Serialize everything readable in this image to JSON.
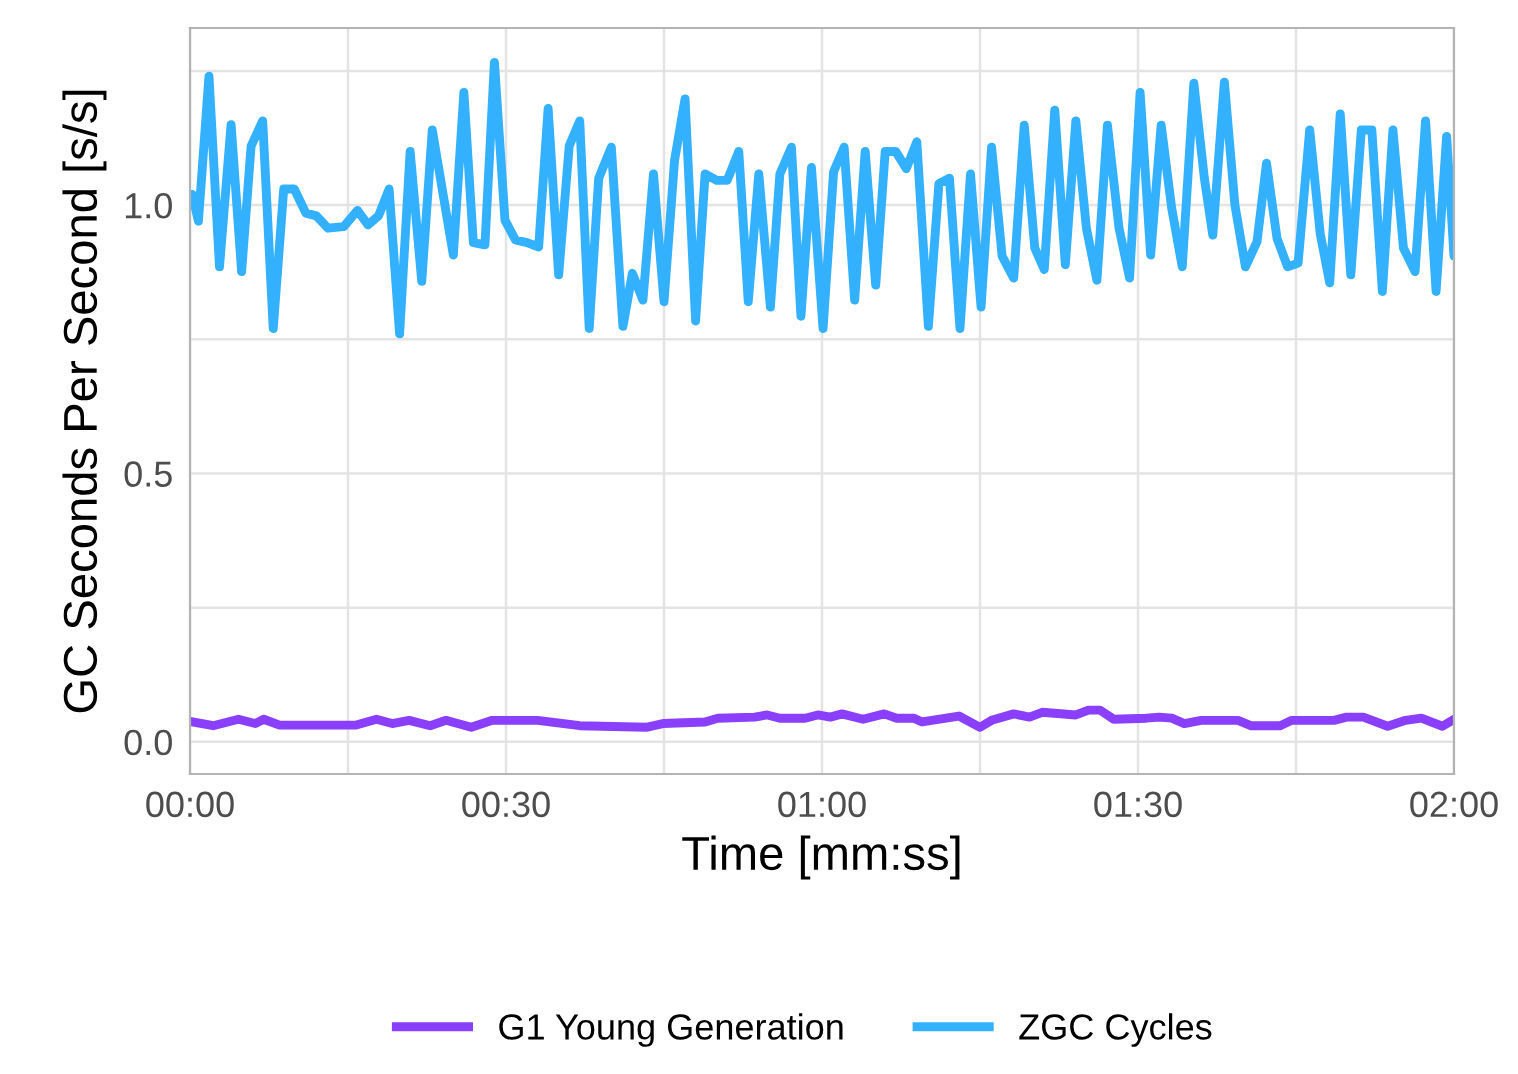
{
  "chart_data": {
    "type": "line",
    "xlabel": "Time [mm:ss]",
    "ylabel": "GC Seconds Per Second [s/s]",
    "xlim": [
      0,
      120
    ],
    "ylim": [
      -0.06,
      1.33
    ],
    "xticks": [
      {
        "value": 0,
        "label": "00:00"
      },
      {
        "value": 15,
        "label": null
      },
      {
        "value": 30,
        "label": "00:30"
      },
      {
        "value": 45,
        "label": null
      },
      {
        "value": 60,
        "label": "01:00"
      },
      {
        "value": 75,
        "label": null
      },
      {
        "value": 90,
        "label": "01:30"
      },
      {
        "value": 105,
        "label": null
      },
      {
        "value": 120,
        "label": "02:00"
      }
    ],
    "yticks": [
      {
        "value": 0,
        "label": "0.0"
      },
      {
        "value": 0.25,
        "label": null
      },
      {
        "value": 0.5,
        "label": "0.5"
      },
      {
        "value": 0.75,
        "label": null
      },
      {
        "value": 1.0,
        "label": "1.0"
      },
      {
        "value": 1.25,
        "label": null
      }
    ],
    "grid": true,
    "legend": "bottom",
    "line_style": "solid",
    "series": [
      {
        "name": "G1 Young Generation",
        "color": "#8a3ffc",
        "x": [
          0,
          2.2,
          4.6,
          6.2,
          7,
          8.5,
          15.7,
          17.7,
          19.2,
          20.8,
          22.8,
          24.3,
          26.7,
          28.7,
          33,
          37,
          43.3,
          44.9,
          48.9,
          50.1,
          53.6,
          54.8,
          56,
          58.4,
          59.6,
          60.8,
          61.9,
          63.9,
          65.9,
          67.1,
          68.7,
          69.5,
          73,
          75,
          76.1,
          78.2,
          79.7,
          80.9,
          84.1,
          85.3,
          86.4,
          87.7,
          90.8,
          92,
          93.2,
          94.4,
          96,
          99.5,
          100.7,
          103.5,
          104.6,
          108.6,
          109.8,
          111.4,
          113.7,
          115.4,
          116.9,
          118.9,
          120
        ],
        "values": [
          0.038,
          0.03,
          0.042,
          0.034,
          0.042,
          0.031,
          0.031,
          0.042,
          0.034,
          0.04,
          0.03,
          0.04,
          0.027,
          0.04,
          0.04,
          0.03,
          0.027,
          0.034,
          0.037,
          0.044,
          0.046,
          0.05,
          0.044,
          0.044,
          0.05,
          0.046,
          0.052,
          0.042,
          0.052,
          0.044,
          0.044,
          0.037,
          0.048,
          0.027,
          0.04,
          0.052,
          0.046,
          0.055,
          0.05,
          0.059,
          0.059,
          0.042,
          0.044,
          0.046,
          0.044,
          0.034,
          0.04,
          0.04,
          0.03,
          0.03,
          0.04,
          0.04,
          0.046,
          0.046,
          0.029,
          0.04,
          0.044,
          0.029,
          0.042
        ]
      },
      {
        "name": "ZGC Cycles",
        "color": "#33b1ff",
        "x": [
          0.2,
          0.8,
          1.8,
          2.8,
          3.9,
          4.9,
          5.8,
          6.9,
          7.9,
          8.9,
          9.9,
          11,
          12,
          13.1,
          14.6,
          15.9,
          16.9,
          17.9,
          18.9,
          19.9,
          20.9,
          22,
          23,
          25,
          26,
          26.9,
          28,
          28.9,
          29.9,
          30.9,
          32,
          33.1,
          34,
          35,
          36,
          37,
          37.9,
          38.8,
          40,
          41.1,
          42,
          43,
          44,
          45,
          46,
          47,
          48,
          48.9,
          50,
          51,
          52.1,
          53,
          54,
          55.1,
          56,
          57.1,
          58,
          59,
          60.1,
          61.1,
          62.1,
          63.1,
          64.1,
          65.1,
          66,
          67,
          68,
          69,
          70.1,
          71.1,
          72.1,
          73.1,
          74.1,
          75.1,
          76.1,
          77.1,
          78.2,
          79.2,
          80.2,
          81.1,
          82.1,
          83.1,
          84.1,
          85.1,
          86.1,
          87.1,
          88.2,
          89.2,
          90.2,
          91.2,
          92.2,
          93.2,
          94.2,
          95.3,
          96.3,
          97.1,
          98.2,
          99.2,
          100.2,
          101.3,
          102.2,
          103.2,
          104.2,
          105.2,
          106.3,
          107.3,
          108.2,
          109.2,
          110.2,
          111.2,
          112.2,
          113.2,
          114.2,
          115.2,
          116.3,
          117.3,
          118.3,
          119.3,
          120
        ],
        "values": [
          1.02,
          0.97,
          1.24,
          0.885,
          1.15,
          0.876,
          1.11,
          1.157,
          0.77,
          1.03,
          1.03,
          0.985,
          0.98,
          0.957,
          0.96,
          0.99,
          0.963,
          0.98,
          1.03,
          0.76,
          1.1,
          0.858,
          1.14,
          0.907,
          1.21,
          0.93,
          0.926,
          1.266,
          0.972,
          0.935,
          0.93,
          0.922,
          1.18,
          0.87,
          1.11,
          1.157,
          0.77,
          1.05,
          1.108,
          0.774,
          0.873,
          0.823,
          1.058,
          0.82,
          1.083,
          1.198,
          0.784,
          1.058,
          1.046,
          1.046,
          1.1,
          0.82,
          1.058,
          0.81,
          1.058,
          1.108,
          0.793,
          1.07,
          0.77,
          1.062,
          1.108,
          0.823,
          1.1,
          0.851,
          1.1,
          1.1,
          1.068,
          1.118,
          0.774,
          1.04,
          1.05,
          0.77,
          1.058,
          0.81,
          1.108,
          0.905,
          0.864,
          1.149,
          0.92,
          0.88,
          1.177,
          0.889,
          1.157,
          0.957,
          0.86,
          1.149,
          0.957,
          0.864,
          1.21,
          0.907,
          1.149,
          0.994,
          0.885,
          1.227,
          1.05,
          0.944,
          1.229,
          1.0,
          0.885,
          0.932,
          1.078,
          0.938,
          0.885,
          0.892,
          1.14,
          0.947,
          0.855,
          1.17,
          0.87,
          1.14,
          1.14,
          0.839,
          1.14,
          0.92,
          0.876,
          1.157,
          0.839,
          1.128,
          0.905
        ]
      }
    ]
  }
}
